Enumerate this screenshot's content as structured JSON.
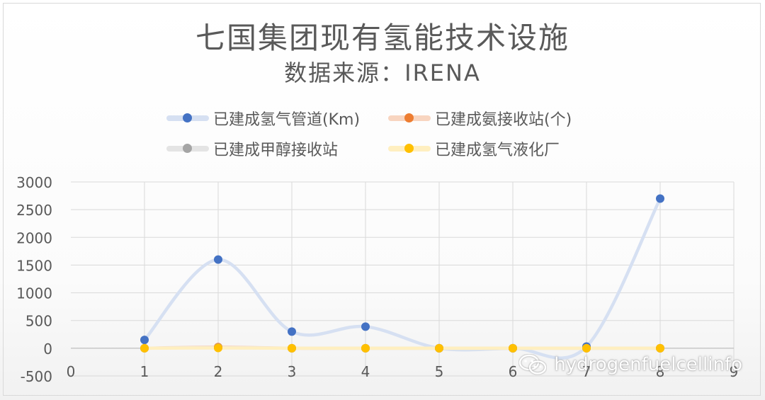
{
  "chart_data": {
    "type": "scatter",
    "title": "七国集团现有氢能技术设施",
    "subtitle": "数据来源：IRENA",
    "xlabel": "",
    "ylabel": "",
    "xlim": [
      0,
      9
    ],
    "ylim": [
      -500,
      3000
    ],
    "x_ticks": [
      "0",
      "1",
      "2",
      "3",
      "4",
      "5",
      "6",
      "7",
      "8",
      "9"
    ],
    "y_ticks": [
      "3000",
      "2500",
      "2000",
      "1500",
      "1000",
      "500",
      "0",
      "-500"
    ],
    "grid": true,
    "smooth_lines": true,
    "legend_position": "top",
    "series": [
      {
        "name": "已建成氢气管道(Km)",
        "color": "#4472C4",
        "line_color": "#D6E0F2",
        "x": [
          1,
          2,
          3,
          4,
          5,
          6,
          7,
          8
        ],
        "values": [
          150,
          1600,
          300,
          390,
          0,
          0,
          30,
          2700
        ]
      },
      {
        "name": "已建成氨接收站(个)",
        "color": "#ED7D31",
        "line_color": "#F8D5C0",
        "x": [
          1,
          2,
          3,
          4,
          5,
          6,
          7,
          8
        ],
        "values": [
          0,
          20,
          0,
          0,
          0,
          0,
          0,
          0
        ]
      },
      {
        "name": "已建成甲醇接收站",
        "color": "#A5A5A5",
        "line_color": "#E4E4E4",
        "x": [
          1,
          2,
          3,
          4,
          5,
          6,
          7,
          8
        ],
        "values": [
          0,
          10,
          0,
          0,
          0,
          0,
          0,
          0
        ]
      },
      {
        "name": "已建成氢气液化厂",
        "color": "#FFC000",
        "line_color": "#FFEFC0",
        "x": [
          1,
          2,
          3,
          4,
          5,
          6,
          7,
          8
        ],
        "values": [
          0,
          5,
          0,
          0,
          0,
          0,
          0,
          0
        ]
      }
    ]
  },
  "watermark": {
    "text": "hydrogenfuelcellinfo",
    "icon": "wechat-icon"
  }
}
